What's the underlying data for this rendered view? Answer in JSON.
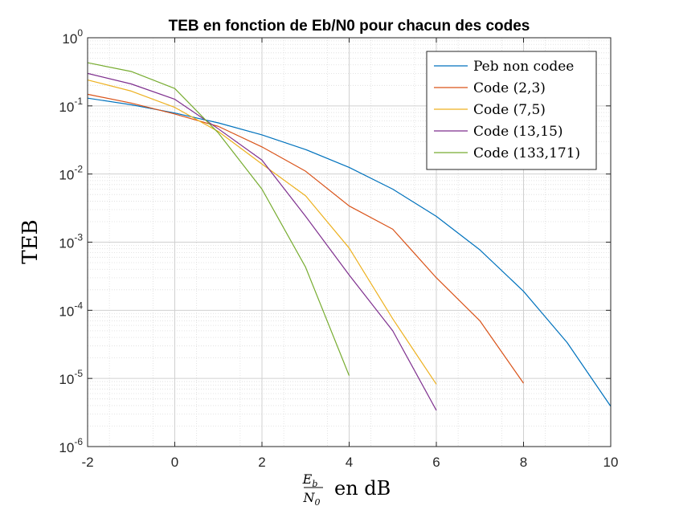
{
  "chart_data": {
    "type": "line",
    "title": "TEB en fonction de Eb/N0 pour chacun des codes",
    "ylabel": "TEB",
    "xlabel": {
      "numerator": "E",
      "numerator_sub": "b",
      "denominator": "N",
      "denominator_sub": "0",
      "suffix": "en dB"
    },
    "xlim": [
      -2,
      10
    ],
    "ylim": [
      1e-06,
      1
    ],
    "yscale": "log",
    "grid": true,
    "legend_position": "top-right",
    "x_ticks": [
      -2,
      0,
      2,
      4,
      6,
      8,
      10
    ],
    "x_tick_labels": [
      "-2",
      "0",
      "2",
      "4",
      "6",
      "8",
      "10"
    ],
    "y_ticks": [
      {
        "base": "10",
        "exp": "0",
        "value": 1
      },
      {
        "base": "10",
        "exp": "-1",
        "value": 0.1
      },
      {
        "base": "10",
        "exp": "-2",
        "value": 0.01
      },
      {
        "base": "10",
        "exp": "-3",
        "value": 0.001
      },
      {
        "base": "10",
        "exp": "-4",
        "value": 0.0001
      },
      {
        "base": "10",
        "exp": "-5",
        "value": 1e-05
      },
      {
        "base": "10",
        "exp": "-6",
        "value": 1e-06
      }
    ],
    "series": [
      {
        "name": "Peb non codee",
        "color": "#0072BD",
        "x": [
          -2,
          -1,
          0,
          1,
          2,
          3,
          4,
          5,
          6,
          7,
          8,
          9,
          10
        ],
        "y": [
          0.13,
          0.104,
          0.0786,
          0.0563,
          0.0375,
          0.0229,
          0.0125,
          0.006,
          0.00239,
          0.00077,
          0.00019,
          3.36e-05,
          3.9e-06
        ]
      },
      {
        "name": "Code (2,3)",
        "color": "#D95319",
        "x": [
          -2,
          -1,
          0,
          1,
          2,
          3,
          4,
          5,
          6,
          7,
          8
        ],
        "y": [
          0.148,
          0.11,
          0.076,
          0.05,
          0.025,
          0.011,
          0.0034,
          0.00155,
          0.0003,
          7e-05,
          8.5e-06
        ]
      },
      {
        "name": "Code (7,5)",
        "color": "#EDB120",
        "x": [
          -2,
          -1,
          0,
          1,
          2,
          3,
          4,
          5,
          6
        ],
        "y": [
          0.24,
          0.165,
          0.095,
          0.042,
          0.014,
          0.0048,
          0.00082,
          7.5e-05,
          8.2e-06
        ]
      },
      {
        "name": "Code (13,15)",
        "color": "#7E2F8E",
        "x": [
          -2,
          -1,
          0,
          1,
          2,
          3,
          4,
          5,
          6
        ],
        "y": [
          0.3,
          0.21,
          0.125,
          0.046,
          0.016,
          0.0024,
          0.00033,
          5e-05,
          3.4e-06
        ]
      },
      {
        "name": "Code (133,171)",
        "color": "#77AC30",
        "x": [
          -2,
          -1,
          0,
          1,
          2,
          3,
          4
        ],
        "y": [
          0.43,
          0.32,
          0.18,
          0.04,
          0.006,
          0.00043,
          1.1e-05
        ]
      }
    ]
  }
}
